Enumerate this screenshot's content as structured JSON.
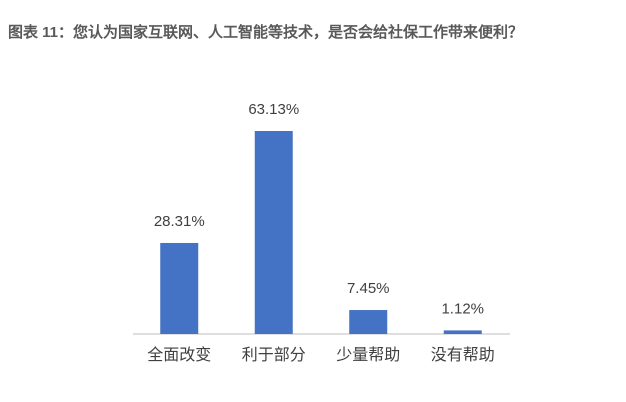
{
  "chart_data": {
    "type": "bar",
    "title": "图表 11：您认为国家互联网、人工智能等技术，是否会给社保工作带来便利？",
    "categories": [
      "全面改变",
      "利于部分",
      "少量帮助",
      "没有帮助"
    ],
    "values": [
      28.31,
      63.13,
      7.45,
      1.12
    ],
    "value_labels": [
      "28.31%",
      "63.13%",
      "7.45%",
      "1.12%"
    ],
    "color": "#4472c4"
  }
}
